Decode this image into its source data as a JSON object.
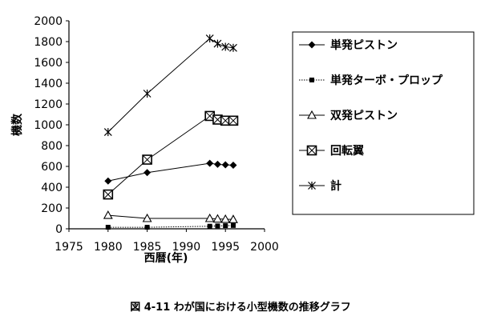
{
  "chart_data": {
    "type": "line",
    "title": "",
    "xlabel": "西暦(年)",
    "ylabel": "機数",
    "xlim": [
      1975,
      2000
    ],
    "ylim": [
      0,
      2000
    ],
    "xticks": [
      "1975",
      "1980",
      "1985",
      "1990",
      "1995",
      "2000"
    ],
    "yticks": [
      "0",
      "200",
      "400",
      "600",
      "800",
      "1000",
      "1200",
      "1400",
      "1600",
      "1800",
      "2000"
    ],
    "grid": false,
    "legend_position": "right",
    "series": [
      {
        "name": "単発ピストン",
        "marker": "diamond-filled",
        "line": "solid",
        "points": [
          [
            1980,
            460
          ],
          [
            1985,
            540
          ],
          [
            1993,
            630
          ],
          [
            1994,
            620
          ],
          [
            1995,
            615
          ],
          [
            1996,
            612
          ]
        ]
      },
      {
        "name": "単発ターボ・プロップ",
        "marker": "square-small-filled",
        "line": "dotted",
        "points": [
          [
            1980,
            15
          ],
          [
            1985,
            15
          ],
          [
            1993,
            25
          ],
          [
            1994,
            28
          ],
          [
            1995,
            30
          ],
          [
            1996,
            32
          ]
        ]
      },
      {
        "name": "双発ピストン",
        "marker": "triangle-open",
        "line": "solid",
        "points": [
          [
            1980,
            130
          ],
          [
            1985,
            100
          ],
          [
            1993,
            100
          ],
          [
            1994,
            95
          ],
          [
            1995,
            92
          ],
          [
            1996,
            90
          ]
        ]
      },
      {
        "name": "回転翼",
        "marker": "boxed-x",
        "line": "solid",
        "points": [
          [
            1980,
            330
          ],
          [
            1985,
            665
          ],
          [
            1993,
            1085
          ],
          [
            1994,
            1050
          ],
          [
            1995,
            1040
          ],
          [
            1996,
            1040
          ]
        ]
      },
      {
        "name": "計",
        "marker": "asterisk",
        "line": "solid",
        "points": [
          [
            1980,
            930
          ],
          [
            1985,
            1300
          ],
          [
            1993,
            1830
          ],
          [
            1994,
            1780
          ],
          [
            1995,
            1750
          ],
          [
            1996,
            1740
          ]
        ]
      }
    ]
  },
  "caption": "図 4-11  わが国における小型機数の推移グラフ"
}
